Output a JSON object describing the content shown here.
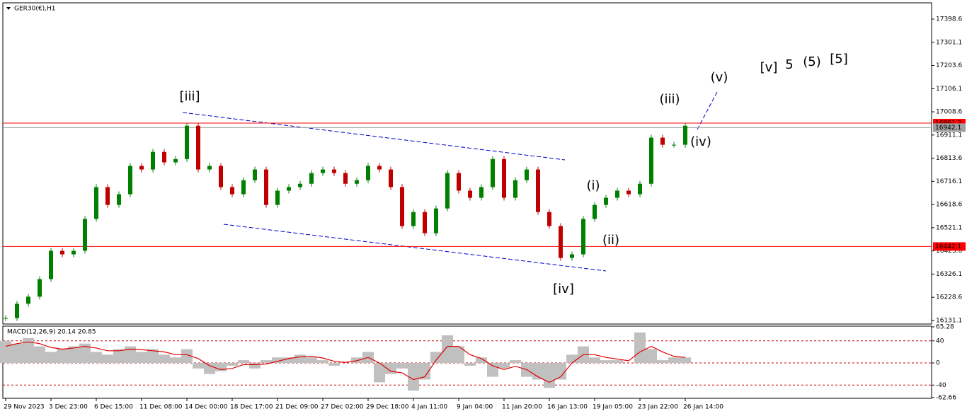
{
  "chart_data": {
    "type": "candlestick",
    "title": "GER30(€),H1",
    "categories": [
      "29 Nov 2023",
      null,
      null,
      null,
      "3 Dec 23:00",
      null,
      null,
      null,
      "6 Dec 15:00",
      null,
      null,
      null,
      "11 Dec 08:00",
      null,
      null,
      null,
      "14 Dec 00:00",
      null,
      null,
      null,
      "18 Dec 17:00",
      null,
      null,
      null,
      "21 Dec 09:00",
      null,
      null,
      null,
      "27 Dec 02:00",
      null,
      null,
      null,
      "29 Dec 18:00",
      null,
      null,
      null,
      "4 Jan 11:00",
      null,
      null,
      null,
      "9 Jan 04:00",
      null,
      null,
      null,
      "11 Jan 20:00",
      null,
      null,
      null,
      "16 Jan 13:00",
      null,
      null,
      null,
      "19 Jan 05:00",
      null,
      null,
      null,
      "23 Jan 22:00",
      null,
      null,
      null,
      "26 Jan 14:00"
    ],
    "values": [
      16141,
      16201,
      16231,
      16305,
      16424,
      16409,
      16424,
      16558,
      16692,
      16617,
      16662,
      16781,
      16766,
      16840,
      16796,
      16810,
      16950,
      16766,
      16781,
      16692,
      16662,
      16721,
      16766,
      16617,
      16677,
      16692,
      16706,
      16751,
      16766,
      16751,
      16706,
      16721,
      16781,
      16766,
      16692,
      16528,
      16587,
      16498,
      16602,
      16751,
      16677,
      16647,
      16692,
      16810,
      16647,
      16721,
      16766,
      16587,
      16528,
      16394,
      16409,
      16558,
      16617,
      16647,
      16677,
      16662,
      16706,
      16900,
      16870,
      16870,
      16950
    ],
    "up_color": "#008000",
    "down_color": "#c00000",
    "ylim": [
      16116,
      17467
    ],
    "yticks": [
      17398.6,
      17301.1,
      17203.6,
      17106.1,
      17008.6,
      16911.1,
      16813.6,
      16716.1,
      16618.6,
      16521.1,
      16423.6,
      16326.1,
      16228.6,
      16131.1
    ],
    "levels": [
      {
        "value": 16961.2,
        "color": "#ff0000"
      },
      {
        "value": 16942.1,
        "color": "#a0a0a0"
      },
      {
        "value": 16442.1,
        "color": "#ff0000"
      }
    ],
    "annotations": [
      {
        "text": "[iii]",
        "color": "#1a8a1a"
      },
      {
        "text": "[iv]",
        "color": "#1a8a1a"
      },
      {
        "text": "(i)",
        "color": "#1a1acc"
      },
      {
        "text": "(ii)",
        "color": "#1a1acc"
      },
      {
        "text": "(iii)",
        "color": "#1a1acc"
      },
      {
        "text": "(iv)",
        "color": "#1a1acc"
      },
      {
        "text": "(v)",
        "color": "#1a1acc"
      },
      {
        "text": "[v]",
        "color": "#1a8a1a"
      },
      {
        "text": "5",
        "color": "#1a1acc"
      },
      {
        "text": "(5)",
        "color": "#ee1111"
      },
      {
        "text": "[5]",
        "color": "#000000"
      }
    ],
    "macd": {
      "label": "MACD(12,26,9) 20.14 20.85",
      "ylim": [
        -62.66,
        65.28
      ],
      "yticks": [
        65.28,
        40,
        0,
        -40,
        -62.66
      ],
      "histogram": {
        "color": "#c0c0c0",
        "values": [
          40,
          35,
          45,
          30,
          20,
          25,
          30,
          35,
          20,
          15,
          25,
          30,
          20,
          25,
          15,
          10,
          25,
          -10,
          -20,
          -15,
          -5,
          5,
          -10,
          5,
          10,
          10,
          15,
          10,
          5,
          -5,
          0,
          10,
          20,
          -35,
          -20,
          -10,
          -50,
          -30,
          20,
          50,
          30,
          -5,
          10,
          -25,
          -10,
          5,
          -25,
          -30,
          -45,
          -30,
          15,
          30,
          10,
          5,
          5,
          0,
          55,
          25,
          5,
          10,
          10
        ]
      },
      "signal": {
        "color": "#e00000",
        "values": [
          30,
          35,
          38,
          35,
          28,
          25,
          27,
          30,
          27,
          22,
          22,
          25,
          24,
          22,
          20,
          15,
          15,
          8,
          -5,
          -12,
          -10,
          -3,
          -3,
          -2,
          3,
          8,
          11,
          12,
          9,
          3,
          1,
          4,
          10,
          0,
          -15,
          -18,
          -30,
          -25,
          5,
          30,
          30,
          15,
          8,
          -5,
          -12,
          -6,
          -12,
          -25,
          -35,
          -25,
          0,
          15,
          15,
          10,
          7,
          4,
          20,
          30,
          20,
          12,
          10
        ]
      }
    }
  }
}
